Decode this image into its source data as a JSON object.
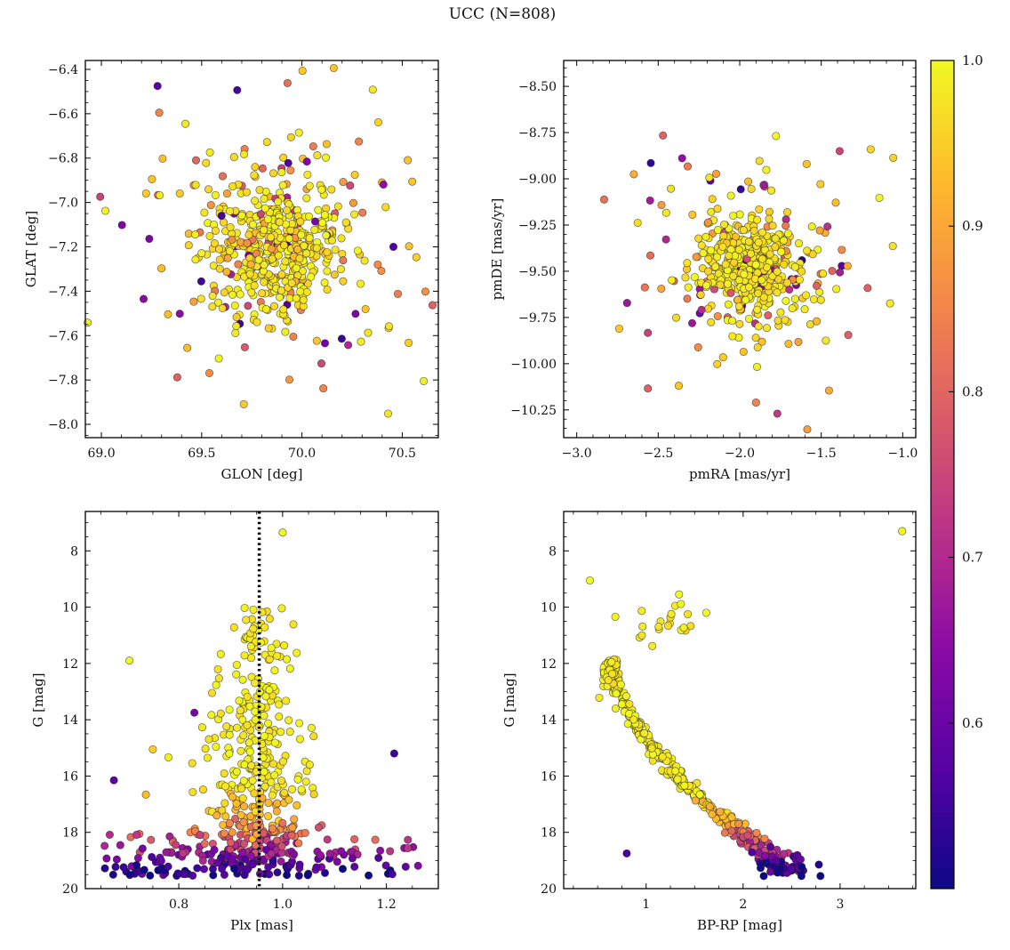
{
  "title": "UCC (N=808)",
  "colorbar": {
    "vmin": 0.5,
    "vmax": 1.0,
    "colormap": "plasma",
    "ticks": [
      {
        "v": 1.0,
        "label": "1.0"
      },
      {
        "v": 0.9,
        "label": "0.9"
      },
      {
        "v": 0.8,
        "label": "0.8"
      },
      {
        "v": 0.7,
        "label": "0.7"
      },
      {
        "v": 0.6,
        "label": "0.6"
      }
    ]
  },
  "colormap_stops": [
    [
      0.0,
      13,
      8,
      135
    ],
    [
      0.14,
      84,
      2,
      163
    ],
    [
      0.29,
      139,
      10,
      165
    ],
    [
      0.43,
      185,
      50,
      137
    ],
    [
      0.57,
      219,
      92,
      104
    ],
    [
      0.71,
      244,
      136,
      73
    ],
    [
      0.86,
      254,
      188,
      43
    ],
    [
      1.0,
      240,
      249,
      33
    ]
  ],
  "chart_data": [
    {
      "id": "pos",
      "type": "scatter",
      "xlabel": "GLON [deg]",
      "ylabel": "GLAT [deg]",
      "xlim": [
        68.92,
        70.68
      ],
      "ylim": [
        -8.06,
        -6.36
      ],
      "invert_y": false,
      "xticks": [
        {
          "v": 69.0,
          "label": "69.0"
        },
        {
          "v": 69.5,
          "label": "69.5"
        },
        {
          "v": 70.0,
          "label": "70.0"
        },
        {
          "v": 70.5,
          "label": "70.5"
        }
      ],
      "yticks": [
        {
          "v": -6.4,
          "label": "−6.4"
        },
        {
          "v": -6.6,
          "label": "−6.6"
        },
        {
          "v": -6.8,
          "label": "−6.8"
        },
        {
          "v": -7.0,
          "label": "−7.0"
        },
        {
          "v": -7.2,
          "label": "−7.2"
        },
        {
          "v": -7.4,
          "label": "−7.4"
        },
        {
          "v": -7.6,
          "label": "−7.6"
        },
        {
          "v": -7.8,
          "label": "−7.8"
        },
        {
          "v": -8.0,
          "label": "−8.0"
        }
      ],
      "xminor": 0.1,
      "yminor": 0.05,
      "color_by": "membership probability",
      "distribution": {
        "kind": "cluster2d",
        "seed": 11,
        "core": {
          "n": 430,
          "cx": 69.88,
          "cy": -7.19,
          "sx": 0.17,
          "sy": 0.155
        },
        "halo": {
          "n": 145,
          "cx": 69.88,
          "cy": -7.19,
          "sx": 0.43,
          "sy": 0.37
        }
      },
      "annotations": [],
      "extra_points": []
    },
    {
      "id": "pm",
      "type": "scatter",
      "xlabel": "pmRA [mas/yr]",
      "ylabel": "pmDE [mas/yr]",
      "xlim": [
        -3.08,
        -0.92
      ],
      "ylim": [
        -10.4,
        -8.36
      ],
      "invert_y": false,
      "xticks": [
        {
          "v": -3.0,
          "label": "−3.0"
        },
        {
          "v": -2.5,
          "label": "−2.5"
        },
        {
          "v": -2.0,
          "label": "−2.0"
        },
        {
          "v": -1.5,
          "label": "−1.5"
        },
        {
          "v": -1.0,
          "label": "−1.0"
        }
      ],
      "yticks": [
        {
          "v": -8.5,
          "label": "−8.50"
        },
        {
          "v": -8.75,
          "label": "−8.75"
        },
        {
          "v": -9.0,
          "label": "−9.00"
        },
        {
          "v": -9.25,
          "label": "−9.25"
        },
        {
          "v": -9.5,
          "label": "−9.50"
        },
        {
          "v": -9.75,
          "label": "−9.75"
        },
        {
          "v": -10.0,
          "label": "−10.00"
        },
        {
          "v": -10.25,
          "label": "−10.25"
        }
      ],
      "xminor": 0.1,
      "yminor": 0.05,
      "color_by": "membership probability",
      "distribution": {
        "kind": "cluster2d",
        "seed": 12,
        "core": {
          "n": 430,
          "cx": -1.92,
          "cy": -9.47,
          "sx": 0.135,
          "sy": 0.125
        },
        "halo": {
          "n": 140,
          "cx": -1.93,
          "cy": -9.45,
          "sx": 0.37,
          "sy": 0.33
        }
      },
      "annotations": [],
      "extra_points": []
    },
    {
      "id": "plx",
      "type": "scatter",
      "xlabel": "Plx [mas]",
      "ylabel": "G [mag]",
      "xlim": [
        0.62,
        1.3
      ],
      "ylim": [
        6.6,
        20.0
      ],
      "invert_y": true,
      "xticks": [
        {
          "v": 0.8,
          "label": "0.8"
        },
        {
          "v": 1.0,
          "label": "1.0"
        },
        {
          "v": 1.2,
          "label": "1.2"
        }
      ],
      "yticks": [
        {
          "v": 8,
          "label": "8"
        },
        {
          "v": 10,
          "label": "10"
        },
        {
          "v": 12,
          "label": "12"
        },
        {
          "v": 14,
          "label": "14"
        },
        {
          "v": 16,
          "label": "16"
        },
        {
          "v": 18,
          "label": "18"
        },
        {
          "v": 20,
          "label": "20"
        }
      ],
      "xminor": 0.05,
      "yminor": 0.5,
      "color_by": "membership probability",
      "distribution": {
        "kind": "plx_column",
        "seed": 21,
        "column": {
          "n": 400,
          "plx": 0.953,
          "sigma_bright": 0.028,
          "sigma_faint": 0.06,
          "gmin": 10.0,
          "gmax": 19.35
        },
        "field": {
          "n": 150,
          "plx_min": 0.655,
          "plx_max": 1.265,
          "g_center": 19.0,
          "g_spread": 0.6
        }
      },
      "annotations": [
        {
          "type": "vline",
          "x": 0.955,
          "style": "dotted",
          "color": "#000000",
          "width": 3.5
        }
      ],
      "extra_points": [
        [
          1.0,
          7.35,
          1.0
        ],
        [
          0.705,
          11.9,
          1.0
        ],
        [
          0.83,
          13.75,
          0.62
        ],
        [
          0.675,
          16.15,
          0.58
        ],
        [
          1.215,
          15.2,
          0.55
        ],
        [
          0.75,
          15.05,
          0.95
        ]
      ]
    },
    {
      "id": "cmd",
      "type": "scatter",
      "xlabel": "BP-RP [mag]",
      "ylabel": "G [mag]",
      "xlim": [
        0.15,
        3.78
      ],
      "ylim": [
        6.6,
        20.0
      ],
      "invert_y": true,
      "xticks": [
        {
          "v": 1,
          "label": "1"
        },
        {
          "v": 2,
          "label": "2"
        },
        {
          "v": 3,
          "label": "3"
        }
      ],
      "yticks": [
        {
          "v": 8,
          "label": "8"
        },
        {
          "v": 10,
          "label": "10"
        },
        {
          "v": 12,
          "label": "12"
        },
        {
          "v": 14,
          "label": "14"
        },
        {
          "v": 16,
          "label": "16"
        },
        {
          "v": 18,
          "label": "18"
        },
        {
          "v": 20,
          "label": "20"
        }
      ],
      "xminor": 0.25,
      "yminor": 0.5,
      "color_by": "membership probability",
      "distribution": {
        "kind": "cmd",
        "seed": 31,
        "curve": [
          [
            11.8,
            0.6
          ],
          [
            13.0,
            0.72
          ],
          [
            14.0,
            0.88
          ],
          [
            15.0,
            1.08
          ],
          [
            16.0,
            1.32
          ],
          [
            17.0,
            1.62
          ],
          [
            18.0,
            2.0
          ],
          [
            19.0,
            2.33
          ],
          [
            19.7,
            2.55
          ]
        ],
        "main": {
          "n": 330,
          "gmin": 11.85,
          "gmax": 19.45
        },
        "clump": {
          "n": 65,
          "g": 11.85,
          "bprp": 0.64
        },
        "giants": {
          "n": 10,
          "g": 10.6,
          "bprp": 1.28
        },
        "pre": {
          "n": 10
        },
        "faint": {
          "n": 26,
          "g": 19.15,
          "bprp": 2.4
        }
      },
      "annotations": [],
      "extra_points": [
        [
          3.64,
          7.3,
          1.0
        ],
        [
          0.42,
          9.05,
          1.0
        ],
        [
          1.34,
          9.55,
          1.0
        ],
        [
          0.8,
          18.75,
          0.56
        ],
        [
          1.62,
          10.2,
          1.0
        ]
      ]
    }
  ]
}
